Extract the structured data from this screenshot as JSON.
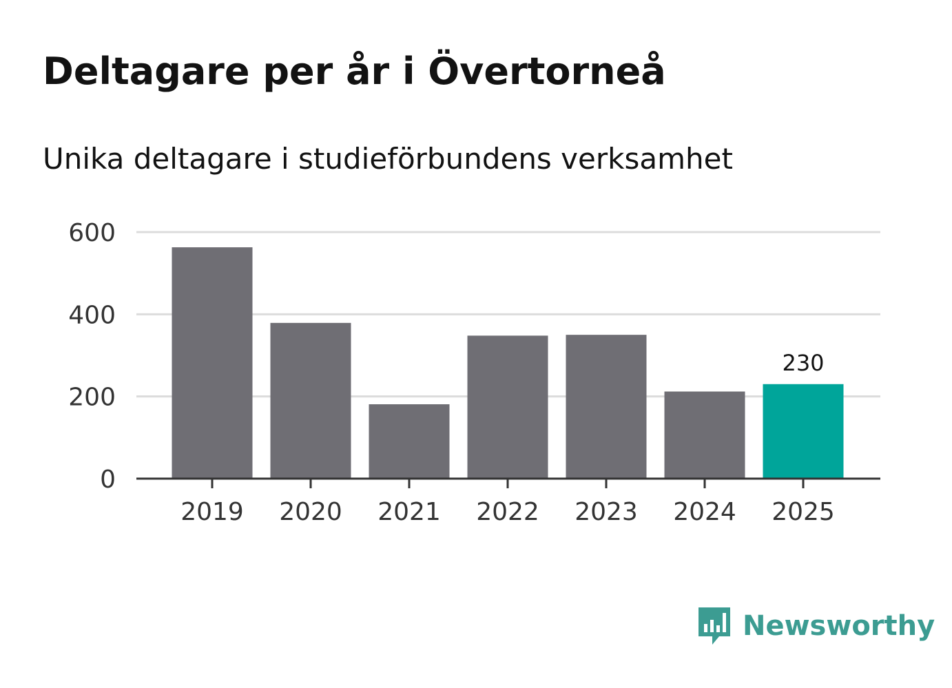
{
  "chart_data": {
    "type": "bar",
    "title": "Deltagare per år i Övertorneå",
    "subtitle": "Unika deltagare i studieförbundens verksamhet",
    "categories": [
      "2019",
      "2020",
      "2021",
      "2022",
      "2023",
      "2024",
      "2025"
    ],
    "values": [
      563,
      379,
      181,
      348,
      350,
      212,
      230
    ],
    "highlight_index": 6,
    "highlight_label": "230",
    "ylim": [
      0,
      600
    ],
    "yticks": [
      0,
      200,
      400,
      600
    ],
    "ytick_labels": [
      "0",
      "200",
      "400",
      "600"
    ],
    "xlabel": "",
    "ylabel": "",
    "grid": true
  },
  "colors": {
    "bar": "#6f6e74",
    "highlight": "#00a59a",
    "grid": "#dcdcdc",
    "axis": "#333333",
    "tick_text": "#333333",
    "brand": "#3c9c92"
  },
  "brand": {
    "name": "Newsworthy",
    "icon": "newsworthy-logo-icon"
  }
}
